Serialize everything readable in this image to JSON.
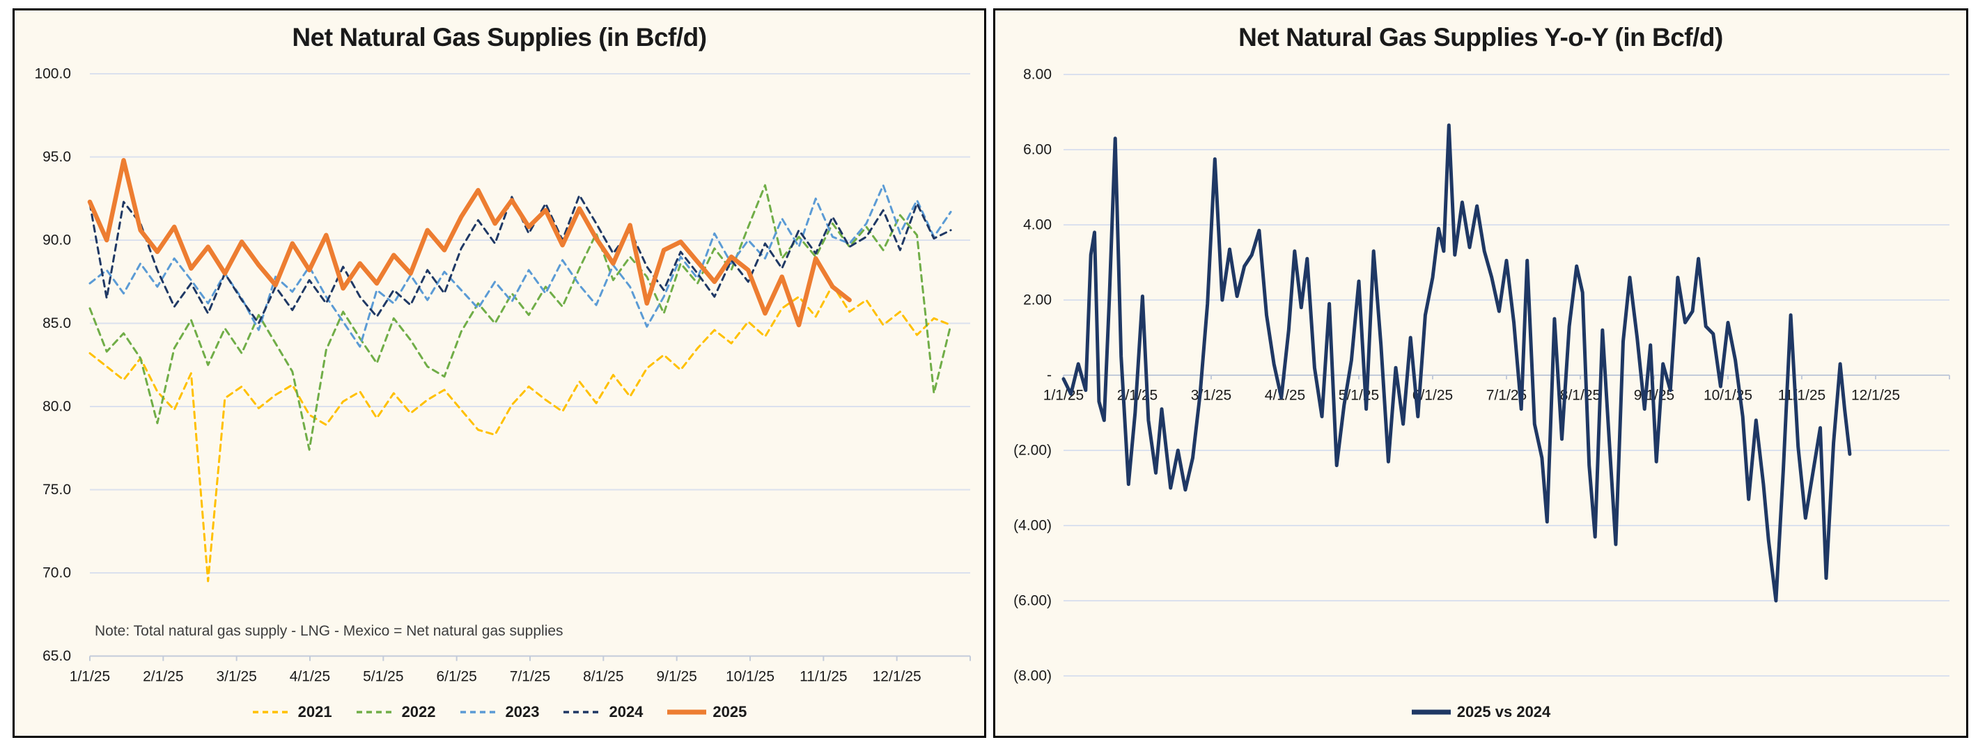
{
  "colors": {
    "panel_background": "#FDF9EF",
    "panel_border": "#000000",
    "gridline": "#dbe1ee",
    "axis": "#c3cbda",
    "text": "#1a1a1a",
    "note_text": "#3d3d3d",
    "series_2021": "#FFC000",
    "series_2022": "#70AD47",
    "series_2023": "#5B9BD5",
    "series_2024": "#1F3864",
    "series_2025": "#ED7D31",
    "series_yoy": "#1F3864"
  },
  "chart_data": [
    {
      "type": "line",
      "title": "Net Natural Gas Supplies (in Bcf/d)",
      "note": "Note: Total natural gas supply - LNG - Mexico = Net natural gas supplies",
      "xlabel": "",
      "ylabel": "",
      "ylim": [
        65,
        100
      ],
      "xlim_months": [
        0,
        12
      ],
      "grid": "horizontal",
      "legend_position": "bottom",
      "yticks": [
        {
          "v": 100,
          "label": "100.0"
        },
        {
          "v": 95,
          "label": "95.0"
        },
        {
          "v": 90,
          "label": "90.0"
        },
        {
          "v": 85,
          "label": "85.0"
        },
        {
          "v": 80,
          "label": "80.0"
        },
        {
          "v": 75,
          "label": "75.0"
        },
        {
          "v": 70,
          "label": "70.0"
        },
        {
          "v": 65,
          "label": "65.0"
        }
      ],
      "xticks": [
        {
          "t": 0,
          "label": "1/1/25"
        },
        {
          "t": 1,
          "label": "2/1/25"
        },
        {
          "t": 2,
          "label": "3/1/25"
        },
        {
          "t": 3,
          "label": "4/1/25"
        },
        {
          "t": 4,
          "label": "5/1/25"
        },
        {
          "t": 5,
          "label": "6/1/25"
        },
        {
          "t": 6,
          "label": "7/1/25"
        },
        {
          "t": 7,
          "label": "8/1/25"
        },
        {
          "t": 8,
          "label": "9/1/25"
        },
        {
          "t": 9,
          "label": "10/1/25"
        },
        {
          "t": 10,
          "label": "11/1/25"
        },
        {
          "t": 11,
          "label": "12/1/25"
        }
      ],
      "series": [
        {
          "name": "2021",
          "color": "#FFC000",
          "style": "dashed",
          "width": 3,
          "t_start": 0,
          "t_step": 0.2301,
          "values": [
            83.2,
            82.4,
            81.6,
            82.9,
            80.9,
            79.8,
            82.0,
            69.5,
            80.5,
            81.2,
            79.9,
            80.7,
            81.3,
            79.5,
            78.9,
            80.3,
            80.9,
            79.3,
            80.8,
            79.6,
            80.4,
            81.0,
            79.8,
            78.6,
            78.3,
            80.1,
            81.2,
            80.4,
            79.7,
            81.5,
            80.2,
            81.9,
            80.6,
            82.3,
            83.1,
            82.2,
            83.5,
            84.6,
            83.8,
            85.1,
            84.2,
            85.9,
            86.6,
            85.4,
            87.3,
            85.7,
            86.4,
            84.9,
            85.7,
            84.3,
            85.3,
            84.9
          ]
        },
        {
          "name": "2022",
          "color": "#70AD47",
          "style": "dashed",
          "width": 3,
          "t_start": 0,
          "t_step": 0.2301,
          "values": [
            85.9,
            83.3,
            84.4,
            82.9,
            79.0,
            83.5,
            85.2,
            82.5,
            84.7,
            83.2,
            85.5,
            83.8,
            82.1,
            77.4,
            83.4,
            85.7,
            84.1,
            82.6,
            85.3,
            84.0,
            82.4,
            81.8,
            84.5,
            86.2,
            85.0,
            86.8,
            85.5,
            87.2,
            86.0,
            88.3,
            90.4,
            87.6,
            89.0,
            87.8,
            85.6,
            88.6,
            87.4,
            89.5,
            88.2,
            90.8,
            93.3,
            88.9,
            90.2,
            89.0,
            91.0,
            89.6,
            90.8,
            89.4,
            91.5,
            90.3,
            80.8,
            84.9
          ]
        },
        {
          "name": "2023",
          "color": "#5B9BD5",
          "style": "dashed",
          "width": 3,
          "t_start": 0,
          "t_step": 0.2301,
          "values": [
            87.4,
            88.2,
            86.8,
            88.6,
            87.2,
            88.9,
            87.6,
            86.2,
            88.0,
            86.5,
            84.6,
            87.8,
            86.9,
            88.4,
            86.6,
            85.1,
            83.6,
            87.0,
            86.2,
            87.9,
            86.4,
            88.1,
            87.0,
            85.9,
            87.5,
            86.3,
            88.2,
            86.8,
            88.8,
            87.3,
            86.1,
            88.5,
            87.2,
            84.8,
            86.6,
            89.0,
            87.7,
            90.4,
            88.6,
            90.0,
            88.9,
            91.3,
            89.6,
            92.5,
            90.2,
            89.8,
            91.0,
            93.3,
            90.4,
            92.4,
            90.2,
            91.7
          ]
        },
        {
          "name": "2024",
          "color": "#1F3864",
          "style": "dashed",
          "width": 3,
          "t_start": 0,
          "t_step": 0.2301,
          "values": [
            92.2,
            86.5,
            92.3,
            91.0,
            88.2,
            86.0,
            87.4,
            85.6,
            88.0,
            86.4,
            85.0,
            87.2,
            85.8,
            87.6,
            86.2,
            88.4,
            86.6,
            85.4,
            87.0,
            86.1,
            88.2,
            86.8,
            89.5,
            91.2,
            89.8,
            92.6,
            90.4,
            92.2,
            90.0,
            92.7,
            91.0,
            89.2,
            90.6,
            88.4,
            87.0,
            89.3,
            88.0,
            86.6,
            88.8,
            87.5,
            89.8,
            88.3,
            90.6,
            89.2,
            91.4,
            89.6,
            90.2,
            91.8,
            89.4,
            92.2,
            90.1,
            90.6
          ]
        },
        {
          "name": "2025",
          "color": "#ED7D31",
          "style": "solid",
          "width": 6.5,
          "t_start": 0,
          "t_step": 0.2301,
          "values": [
            92.3,
            90.0,
            94.8,
            90.6,
            89.3,
            90.8,
            88.3,
            89.6,
            88.0,
            89.9,
            88.5,
            87.3,
            89.8,
            88.2,
            90.3,
            87.1,
            88.6,
            87.4,
            89.1,
            88.0,
            90.6,
            89.4,
            91.4,
            93.0,
            91.0,
            92.4,
            90.8,
            91.8,
            89.7,
            91.9,
            90.1,
            88.6,
            90.9,
            86.2,
            89.4,
            89.9,
            88.7,
            87.5,
            89.0,
            88.2,
            85.6,
            87.8,
            84.9,
            88.9,
            87.2,
            86.4
          ]
        }
      ]
    },
    {
      "type": "line",
      "title": "Net Natural Gas Supplies Y-o-Y (in Bcf/d)",
      "xlabel": "",
      "ylabel": "",
      "ylim": [
        -8,
        8
      ],
      "xlim_months": [
        0,
        12
      ],
      "grid": "horizontal",
      "legend_position": "bottom",
      "yticks": [
        {
          "v": 8,
          "label": "8.00"
        },
        {
          "v": 6,
          "label": "6.00"
        },
        {
          "v": 4,
          "label": "4.00"
        },
        {
          "v": 2,
          "label": "2.00"
        },
        {
          "v": 0,
          "label": "-"
        },
        {
          "v": -2,
          "label": "(2.00)"
        },
        {
          "v": -4,
          "label": "(4.00)"
        },
        {
          "v": -6,
          "label": "(6.00)"
        },
        {
          "v": -8,
          "label": "(8.00)"
        }
      ],
      "xticks": [
        {
          "t": 0,
          "label": "1/1/25"
        },
        {
          "t": 1,
          "label": "2/1/25"
        },
        {
          "t": 2,
          "label": "3/1/25"
        },
        {
          "t": 3,
          "label": "4/1/25"
        },
        {
          "t": 4,
          "label": "5/1/25"
        },
        {
          "t": 5,
          "label": "6/1/25"
        },
        {
          "t": 6,
          "label": "7/1/25"
        },
        {
          "t": 7,
          "label": "8/1/25"
        },
        {
          "t": 8,
          "label": "9/1/25"
        },
        {
          "t": 9,
          "label": "10/1/25"
        },
        {
          "t": 10,
          "label": "11/1/25"
        },
        {
          "t": 11,
          "label": "12/1/25"
        }
      ],
      "series": [
        {
          "name": "2025 vs 2024",
          "color": "#1F3864",
          "style": "solid",
          "width": 5,
          "points": [
            [
              0,
              -0.1
            ],
            [
              0.1,
              -0.5
            ],
            [
              0.2,
              0.3
            ],
            [
              0.3,
              -0.4
            ],
            [
              0.37,
              3.2
            ],
            [
              0.42,
              3.8
            ],
            [
              0.48,
              -0.7
            ],
            [
              0.55,
              -1.2
            ],
            [
              0.62,
              2.0
            ],
            [
              0.7,
              6.3
            ],
            [
              0.78,
              0.5
            ],
            [
              0.88,
              -2.9
            ],
            [
              0.97,
              -1.0
            ],
            [
              1.07,
              2.1
            ],
            [
              1.15,
              -1.2
            ],
            [
              1.25,
              -2.6
            ],
            [
              1.33,
              -0.9
            ],
            [
              1.45,
              -3.0
            ],
            [
              1.55,
              -2.0
            ],
            [
              1.65,
              -3.05
            ],
            [
              1.75,
              -2.2
            ],
            [
              1.85,
              -0.5
            ],
            [
              1.95,
              1.9
            ],
            [
              2.05,
              5.75
            ],
            [
              2.15,
              2.0
            ],
            [
              2.25,
              3.35
            ],
            [
              2.35,
              2.1
            ],
            [
              2.45,
              2.9
            ],
            [
              2.55,
              3.2
            ],
            [
              2.65,
              3.85
            ],
            [
              2.75,
              1.6
            ],
            [
              2.85,
              0.3
            ],
            [
              2.95,
              -0.6
            ],
            [
              3.05,
              1.2
            ],
            [
              3.13,
              3.3
            ],
            [
              3.22,
              1.8
            ],
            [
              3.3,
              3.1
            ],
            [
              3.4,
              0.2
            ],
            [
              3.5,
              -1.1
            ],
            [
              3.6,
              1.9
            ],
            [
              3.7,
              -2.4
            ],
            [
              3.8,
              -0.8
            ],
            [
              3.9,
              0.4
            ],
            [
              4.0,
              2.5
            ],
            [
              4.1,
              -0.9
            ],
            [
              4.2,
              3.3
            ],
            [
              4.3,
              0.8
            ],
            [
              4.4,
              -2.3
            ],
            [
              4.5,
              0.2
            ],
            [
              4.6,
              -1.3
            ],
            [
              4.7,
              1.0
            ],
            [
              4.8,
              -1.1
            ],
            [
              4.9,
              1.6
            ],
            [
              5.0,
              2.6
            ],
            [
              5.08,
              3.9
            ],
            [
              5.15,
              3.3
            ],
            [
              5.22,
              6.65
            ],
            [
              5.3,
              3.2
            ],
            [
              5.4,
              4.6
            ],
            [
              5.5,
              3.4
            ],
            [
              5.6,
              4.5
            ],
            [
              5.7,
              3.3
            ],
            [
              5.8,
              2.6
            ],
            [
              5.9,
              1.7
            ],
            [
              6.0,
              3.05
            ],
            [
              6.1,
              1.4
            ],
            [
              6.2,
              -0.9
            ],
            [
              6.28,
              3.05
            ],
            [
              6.38,
              -1.3
            ],
            [
              6.48,
              -2.2
            ],
            [
              6.55,
              -3.9
            ],
            [
              6.65,
              1.5
            ],
            [
              6.75,
              -1.7
            ],
            [
              6.85,
              1.3
            ],
            [
              6.95,
              2.9
            ],
            [
              7.03,
              2.2
            ],
            [
              7.12,
              -2.4
            ],
            [
              7.2,
              -4.3
            ],
            [
              7.3,
              1.2
            ],
            [
              7.4,
              -2.0
            ],
            [
              7.48,
              -4.5
            ],
            [
              7.58,
              0.9
            ],
            [
              7.67,
              2.6
            ],
            [
              7.77,
              1.0
            ],
            [
              7.87,
              -0.9
            ],
            [
              7.95,
              0.8
            ],
            [
              8.03,
              -2.3
            ],
            [
              8.12,
              0.3
            ],
            [
              8.22,
              -0.4
            ],
            [
              8.32,
              2.6
            ],
            [
              8.42,
              1.4
            ],
            [
              8.52,
              1.7
            ],
            [
              8.6,
              3.1
            ],
            [
              8.7,
              1.3
            ],
            [
              8.8,
              1.1
            ],
            [
              8.9,
              -0.3
            ],
            [
              9.0,
              1.4
            ],
            [
              9.1,
              0.4
            ],
            [
              9.2,
              -1.1
            ],
            [
              9.28,
              -3.3
            ],
            [
              9.38,
              -1.2
            ],
            [
              9.48,
              -2.9
            ],
            [
              9.55,
              -4.4
            ],
            [
              9.65,
              -6.0
            ],
            [
              9.75,
              -2.5
            ],
            [
              9.85,
              1.6
            ],
            [
              9.95,
              -1.9
            ],
            [
              10.05,
              -3.8
            ],
            [
              10.15,
              -2.6
            ],
            [
              10.25,
              -1.4
            ],
            [
              10.33,
              -5.4
            ],
            [
              10.43,
              -1.8
            ],
            [
              10.52,
              0.3
            ],
            [
              10.58,
              -0.9
            ],
            [
              10.65,
              -2.1
            ]
          ]
        }
      ]
    }
  ]
}
